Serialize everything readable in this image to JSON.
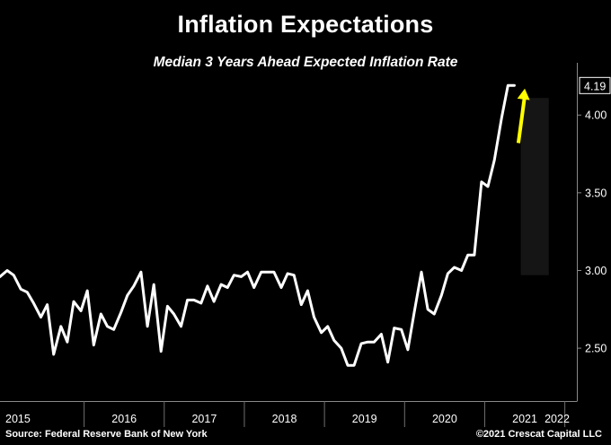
{
  "chart_data": {
    "type": "line",
    "title": "Inflation Expectations",
    "subtitle": "Median 3 Years Ahead Expected Inflation Rate",
    "x_tick_labels": [
      "2015",
      "2016",
      "2017",
      "2018",
      "2019",
      "2020",
      "2021",
      "2022"
    ],
    "y_ticks": [
      "2.50",
      "3.00",
      "3.50",
      "4.00"
    ],
    "ylim": [
      2.16,
      4.29
    ],
    "last_value_label": "4.19",
    "source": "Source: Federal Reserve Bank of New York",
    "copyright": "©2021 Crescat Capital LLC",
    "series": [
      {
        "name": "Median 3 Years Ahead Expected Inflation Rate",
        "color": "#ffffff",
        "x": [
          2014.95,
          2015.04,
          2015.12,
          2015.21,
          2015.29,
          2015.37,
          2015.46,
          2015.54,
          2015.62,
          2015.71,
          2015.79,
          2015.87,
          2015.96,
          2016.04,
          2016.12,
          2016.21,
          2016.29,
          2016.37,
          2016.46,
          2016.54,
          2016.62,
          2016.71,
          2016.79,
          2016.87,
          2016.96,
          2017.04,
          2017.12,
          2017.21,
          2017.29,
          2017.37,
          2017.46,
          2017.54,
          2017.62,
          2017.71,
          2017.79,
          2017.87,
          2017.96,
          2018.04,
          2018.12,
          2018.21,
          2018.29,
          2018.37,
          2018.46,
          2018.54,
          2018.62,
          2018.71,
          2018.79,
          2018.87,
          2018.96,
          2019.04,
          2019.12,
          2019.21,
          2019.29,
          2019.37,
          2019.46,
          2019.54,
          2019.62,
          2019.71,
          2019.79,
          2019.87,
          2019.96,
          2020.04,
          2020.12,
          2020.21,
          2020.29,
          2020.37,
          2020.46,
          2020.54,
          2020.62,
          2020.71,
          2020.79,
          2020.87,
          2020.96,
          2021.04,
          2021.12,
          2021.21,
          2021.29,
          2021.37
        ],
        "values": [
          2.96,
          3.0,
          2.97,
          2.88,
          2.86,
          2.79,
          2.7,
          2.78,
          2.46,
          2.64,
          2.54,
          2.8,
          2.74,
          2.87,
          2.52,
          2.72,
          2.64,
          2.62,
          2.73,
          2.84,
          2.9,
          2.99,
          2.64,
          2.91,
          2.48,
          2.77,
          2.72,
          2.64,
          2.81,
          2.81,
          2.79,
          2.9,
          2.8,
          2.91,
          2.89,
          2.97,
          2.96,
          2.99,
          2.89,
          2.99,
          2.99,
          2.99,
          2.89,
          2.98,
          2.97,
          2.78,
          2.87,
          2.7,
          2.6,
          2.64,
          2.55,
          2.5,
          2.39,
          2.39,
          2.53,
          2.54,
          2.54,
          2.59,
          2.41,
          2.63,
          2.62,
          2.49,
          2.73,
          2.99,
          2.75,
          2.72,
          2.84,
          2.98,
          3.02,
          3.0,
          3.1,
          3.1,
          3.57,
          3.54,
          3.71,
          3.98,
          4.19,
          4.19
        ]
      }
    ],
    "annotation": {
      "type": "arrow",
      "color": "#ffff00",
      "from": [
        2021.42,
        3.82
      ],
      "to": [
        2021.5,
        4.17
      ]
    },
    "shaded_region": {
      "x": [
        2021.45,
        2021.8
      ],
      "y": [
        2.97,
        4.11
      ]
    }
  }
}
